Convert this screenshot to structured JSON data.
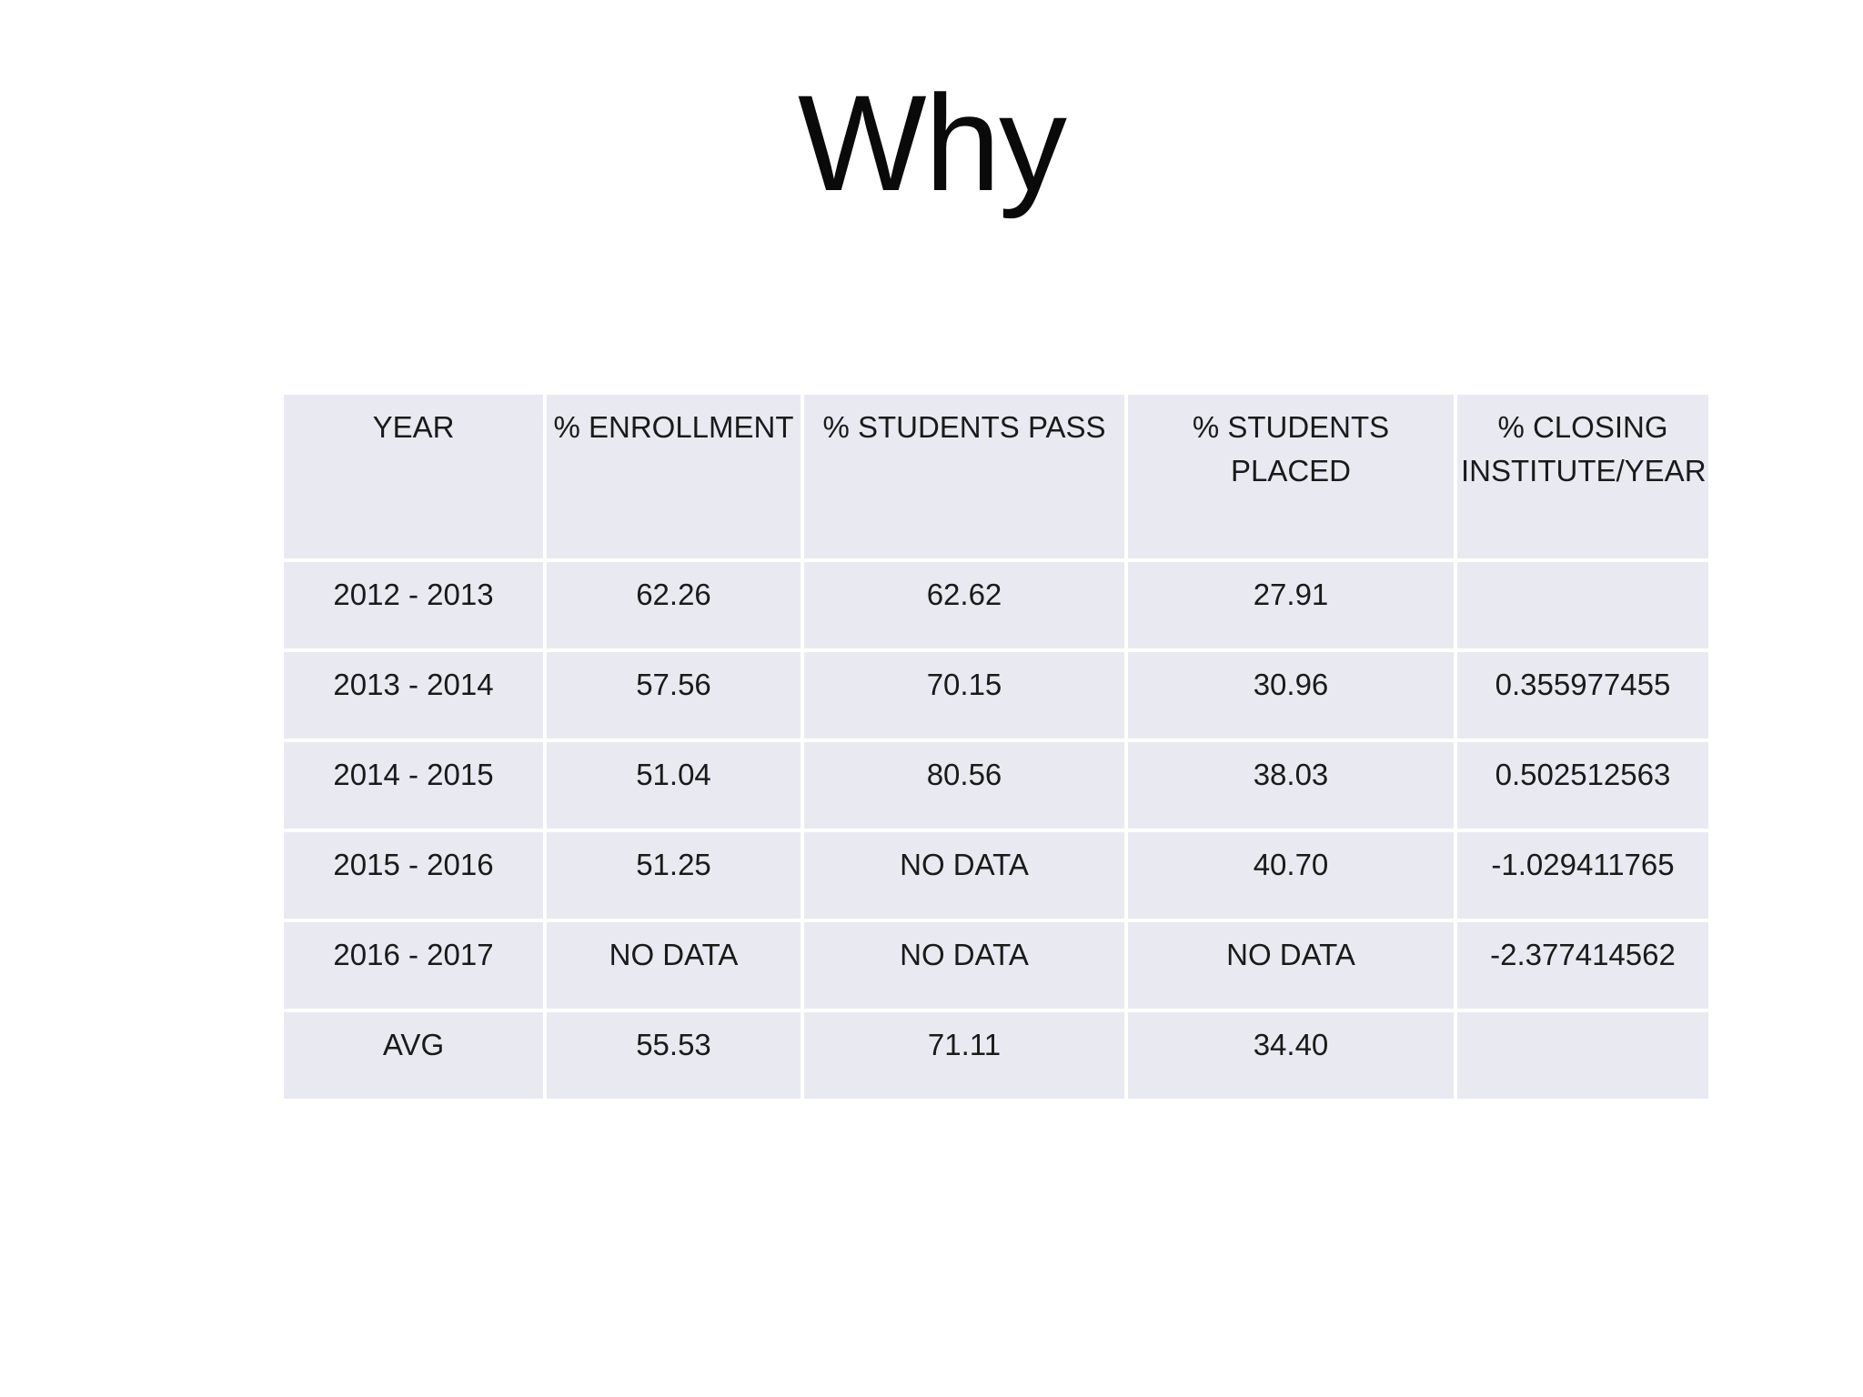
{
  "slide": {
    "title": "Why"
  },
  "table": {
    "columns": [
      "YEAR",
      "% ENROLLMENT",
      "% STUDENTS PASS",
      "% STUDENTS PLACED",
      "% CLOSING INSTITUTE/YEAR"
    ],
    "rows": [
      [
        "2012 - 2013",
        "62.26",
        "62.62",
        "27.91",
        ""
      ],
      [
        "2013 - 2014",
        "57.56",
        "70.15",
        "30.96",
        "0.355977455"
      ],
      [
        "2014 - 2015",
        "51.04",
        "80.56",
        "38.03",
        "0.502512563"
      ],
      [
        "2015 - 2016",
        "51.25",
        "NO DATA",
        "40.70",
        "-1.029411765"
      ],
      [
        "2016 - 2017",
        "NO DATA",
        "NO DATA",
        "NO DATA",
        "-2.377414562"
      ],
      [
        "AVG",
        "55.53",
        "71.11",
        "34.40",
        ""
      ]
    ],
    "colors": {
      "cell_background": "#e9eaf1",
      "grid_line": "#ffffff",
      "text": "#1a1a1a",
      "slide_background": "#ffffff"
    }
  }
}
